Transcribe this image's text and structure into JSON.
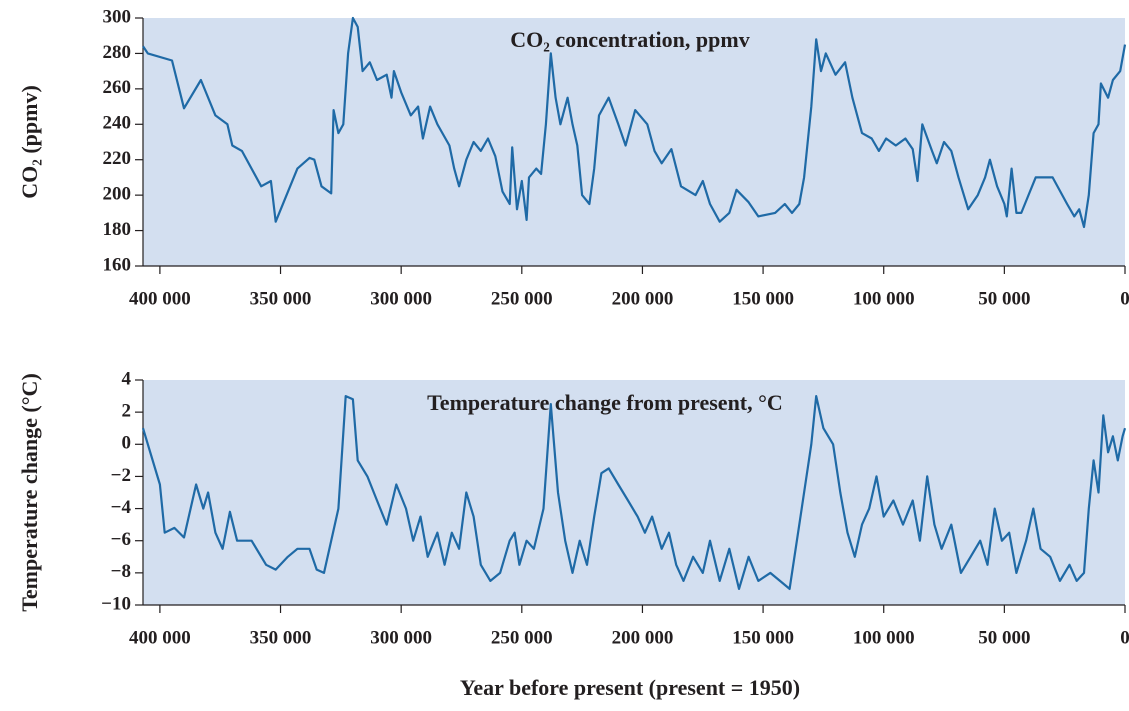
{
  "chart_data": [
    {
      "type": "line",
      "y_label": "CO₂ (ppmv)",
      "annotation": "CO₂ concentration, ppmv",
      "color": "#1f6aa6",
      "background": "#d3dff0",
      "xlim": [
        407000,
        0
      ],
      "ylim": [
        160,
        300
      ],
      "xticks": [
        {
          "value": 400000,
          "label": "400 000"
        },
        {
          "value": 350000,
          "label": "350 000"
        },
        {
          "value": 300000,
          "label": "300 000"
        },
        {
          "value": 250000,
          "label": "250 000"
        },
        {
          "value": 200000,
          "label": "200 000"
        },
        {
          "value": 150000,
          "label": "150 000"
        },
        {
          "value": 100000,
          "label": "100 000"
        },
        {
          "value": 50000,
          "label": "50 000"
        },
        0
      ],
      "yticks": [
        160,
        180,
        200,
        220,
        240,
        260,
        280,
        300
      ],
      "x": [
        407000,
        405000,
        395000,
        390000,
        383000,
        377000,
        372000,
        370000,
        366000,
        358000,
        354000,
        352000,
        343000,
        338000,
        336000,
        333000,
        329000,
        328000,
        326000,
        324000,
        322000,
        320000,
        318000,
        316000,
        313000,
        310000,
        306000,
        304000,
        303000,
        300000,
        296000,
        293000,
        291000,
        288000,
        285000,
        280000,
        278000,
        276000,
        273000,
        270000,
        267000,
        264000,
        261000,
        258000,
        255000,
        254000,
        252000,
        250000,
        248000,
        247000,
        244000,
        242000,
        240000,
        238000,
        236000,
        234000,
        231000,
        229000,
        227000,
        225000,
        222000,
        220000,
        218000,
        214000,
        210000,
        207000,
        203000,
        198000,
        195000,
        192000,
        188000,
        184000,
        178000,
        175000,
        172000,
        168000,
        164000,
        161000,
        156000,
        152000,
        145000,
        141000,
        138000,
        135000,
        133000,
        130000,
        128000,
        126000,
        124000,
        120000,
        116000,
        113000,
        109000,
        105000,
        102000,
        99000,
        95000,
        91000,
        88000,
        86000,
        84000,
        80000,
        78000,
        75000,
        72000,
        69000,
        65000,
        61000,
        58000,
        56000,
        53000,
        50000,
        49000,
        47000,
        45000,
        43000,
        40000,
        37000,
        30000,
        24000,
        21000,
        19000,
        17000,
        15000,
        13000,
        11000,
        10000,
        7000,
        5000,
        2000,
        0
      ],
      "values": [
        284,
        280,
        276,
        249,
        265,
        245,
        240,
        228,
        225,
        205,
        208,
        185,
        215,
        221,
        220,
        205,
        201,
        248,
        235,
        240,
        280,
        300,
        295,
        270,
        275,
        265,
        268,
        255,
        270,
        258,
        245,
        250,
        232,
        250,
        240,
        228,
        215,
        205,
        220,
        230,
        225,
        232,
        222,
        202,
        195,
        227,
        192,
        208,
        186,
        210,
        215,
        212,
        240,
        280,
        255,
        240,
        255,
        240,
        228,
        200,
        195,
        215,
        245,
        255,
        240,
        228,
        248,
        240,
        225,
        218,
        226,
        205,
        200,
        208,
        195,
        185,
        190,
        203,
        196,
        188,
        190,
        195,
        190,
        195,
        210,
        250,
        288,
        270,
        280,
        268,
        275,
        255,
        235,
        232,
        225,
        232,
        228,
        232,
        226,
        208,
        240,
        225,
        218,
        230,
        225,
        210,
        192,
        200,
        210,
        220,
        205,
        195,
        188,
        215,
        190,
        190,
        200,
        210,
        210,
        195,
        188,
        192,
        182,
        200,
        235,
        240,
        263,
        255,
        265,
        270,
        285
      ]
    },
    {
      "type": "line",
      "y_label": "Temperature change (°C)",
      "annotation": "Temperature change from present, °C",
      "x_label": "Year before present (present = 1950)",
      "color": "#1f6aa6",
      "background": "#d3dff0",
      "xlim": [
        407000,
        0
      ],
      "ylim": [
        -10,
        4
      ],
      "xticks": [
        {
          "value": 400000,
          "label": "400 000"
        },
        {
          "value": 350000,
          "label": "350 000"
        },
        {
          "value": 300000,
          "label": "300 000"
        },
        {
          "value": 250000,
          "label": "250 000"
        },
        {
          "value": 200000,
          "label": "200 000"
        },
        {
          "value": 150000,
          "label": "150 000"
        },
        {
          "value": 100000,
          "label": "100 000"
        },
        {
          "value": 50000,
          "label": "50 000"
        },
        0
      ],
      "yticks": [
        {
          "value": -10,
          "label": "−10"
        },
        {
          "value": -8,
          "label": "−8"
        },
        {
          "value": -6,
          "label": "−6"
        },
        {
          "value": -4,
          "label": "−4"
        },
        {
          "value": -2,
          "label": "−2"
        },
        0,
        2,
        4
      ],
      "x": [
        407000,
        400000,
        398000,
        394000,
        390000,
        385000,
        382000,
        380000,
        377000,
        374000,
        371000,
        368000,
        362000,
        356000,
        352000,
        347000,
        343000,
        338000,
        335000,
        332000,
        326000,
        323000,
        320000,
        318000,
        314000,
        310000,
        306000,
        302000,
        298000,
        295000,
        292000,
        289000,
        285000,
        282000,
        279000,
        276000,
        273000,
        270000,
        267000,
        263000,
        259000,
        255000,
        253000,
        251000,
        248000,
        245000,
        241000,
        238000,
        235000,
        232000,
        229000,
        226000,
        223000,
        220000,
        217000,
        214000,
        210000,
        206000,
        202000,
        199000,
        196000,
        192000,
        189000,
        186000,
        183000,
        179000,
        175000,
        172000,
        168000,
        164000,
        160000,
        156000,
        152000,
        147000,
        143000,
        139000,
        135000,
        130000,
        128000,
        125000,
        121000,
        118000,
        115000,
        112000,
        109000,
        106000,
        103000,
        100000,
        96000,
        92000,
        88000,
        85000,
        82000,
        79000,
        76000,
        72000,
        68000,
        64000,
        60000,
        57000,
        54000,
        51000,
        48000,
        45000,
        41000,
        38000,
        35000,
        31000,
        27000,
        23000,
        20000,
        17000,
        15000,
        13000,
        11000,
        9000,
        7000,
        5000,
        3000,
        1000,
        0
      ],
      "values": [
        1,
        -2.5,
        -5.5,
        -5.2,
        -5.8,
        -2.5,
        -4,
        -3,
        -5.5,
        -6.5,
        -4.2,
        -6,
        -6,
        -7.5,
        -7.8,
        -7,
        -6.5,
        -6.5,
        -7.8,
        -8,
        -4,
        3,
        2.8,
        -1,
        -2,
        -3.5,
        -5,
        -2.5,
        -4,
        -6,
        -4.5,
        -7,
        -5.5,
        -7.5,
        -5.5,
        -6.5,
        -3,
        -4.5,
        -7.5,
        -8.5,
        -8,
        -6,
        -5.5,
        -7.5,
        -6,
        -6.5,
        -4,
        2.5,
        -3,
        -6,
        -8,
        -6,
        -7.5,
        -4.5,
        -1.8,
        -1.5,
        -2.5,
        -3.5,
        -4.5,
        -5.5,
        -4.5,
        -6.5,
        -5.5,
        -7.5,
        -8.5,
        -7,
        -8,
        -6,
        -8.5,
        -6.5,
        -9,
        -7,
        -8.5,
        -8,
        -8.5,
        -9,
        -5,
        0,
        3,
        1,
        0,
        -3,
        -5.5,
        -7,
        -5,
        -4,
        -2,
        -4.5,
        -3.5,
        -5,
        -3.5,
        -6,
        -2,
        -5,
        -6.5,
        -5,
        -8,
        -7,
        -6,
        -7.5,
        -4,
        -6,
        -5.5,
        -8,
        -6,
        -4,
        -6.5,
        -7,
        -8.5,
        -7.5,
        -8.5,
        -8,
        -4,
        -1,
        -3,
        1.8,
        -0.5,
        0.5,
        -1,
        0.5,
        1
      ]
    }
  ]
}
